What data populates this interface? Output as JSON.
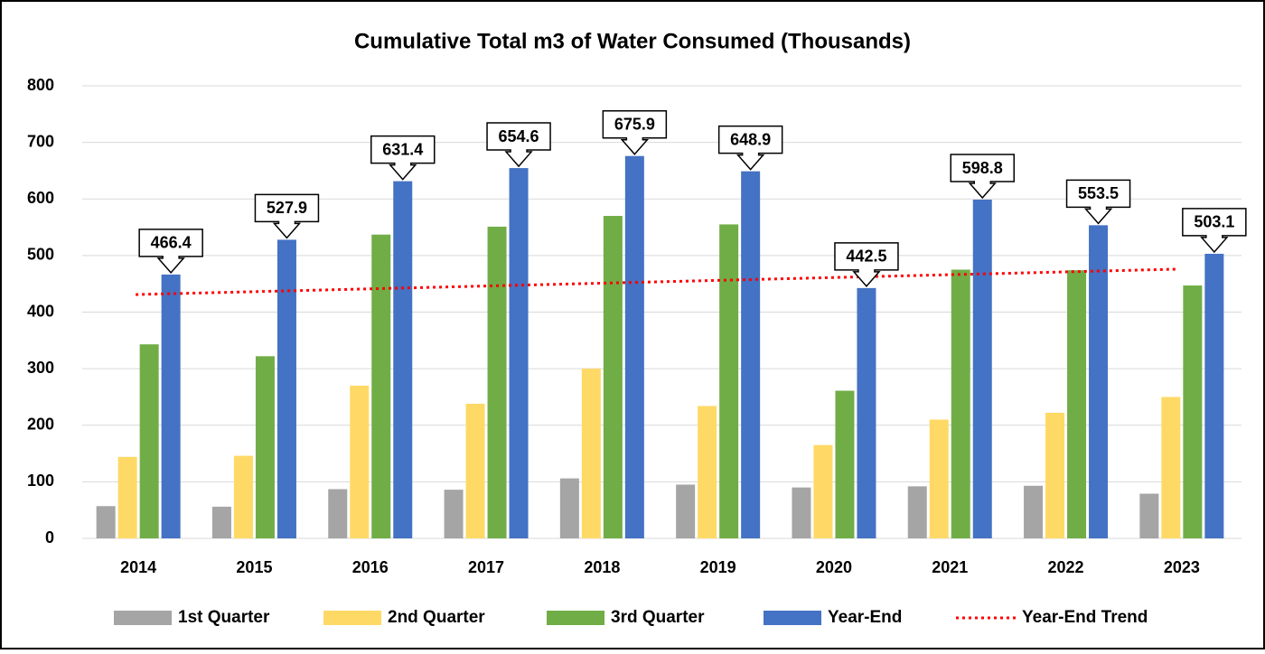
{
  "chart_data": {
    "type": "bar",
    "title": "Cumulative Total m3 of Water Consumed (Thousands)",
    "categories": [
      "2014",
      "2015",
      "2016",
      "2017",
      "2018",
      "2019",
      "2020",
      "2021",
      "2022",
      "2023"
    ],
    "series": [
      {
        "name": "1st Quarter",
        "color": "#a5a5a5",
        "values": [
          57,
          56,
          87,
          86,
          106,
          95,
          90,
          92,
          93,
          79
        ]
      },
      {
        "name": "2nd Quarter",
        "color": "#ffd966",
        "values": [
          144,
          146,
          270,
          238,
          300,
          234,
          165,
          210,
          222,
          250
        ]
      },
      {
        "name": "3rd Quarter",
        "color": "#70ad47",
        "values": [
          343,
          322,
          537,
          551,
          570,
          555,
          261,
          475,
          474,
          447
        ]
      },
      {
        "name": "Year-End",
        "color": "#4472c4",
        "values": [
          466.4,
          527.9,
          631.4,
          654.6,
          675.9,
          648.9,
          442.5,
          598.8,
          553.5,
          503.1
        ],
        "data_labels": true
      },
      {
        "name": "Year-End Trend",
        "color": "#ff0000",
        "type": "line",
        "dash": "dotted",
        "values": [
          431,
          436,
          441,
          446,
          451,
          456,
          461,
          466,
          471,
          476
        ]
      }
    ],
    "ylim": [
      0,
      800
    ],
    "yticks": [
      0,
      100,
      200,
      300,
      400,
      500,
      600,
      700,
      800
    ],
    "grid": true,
    "legend": "bottom"
  }
}
